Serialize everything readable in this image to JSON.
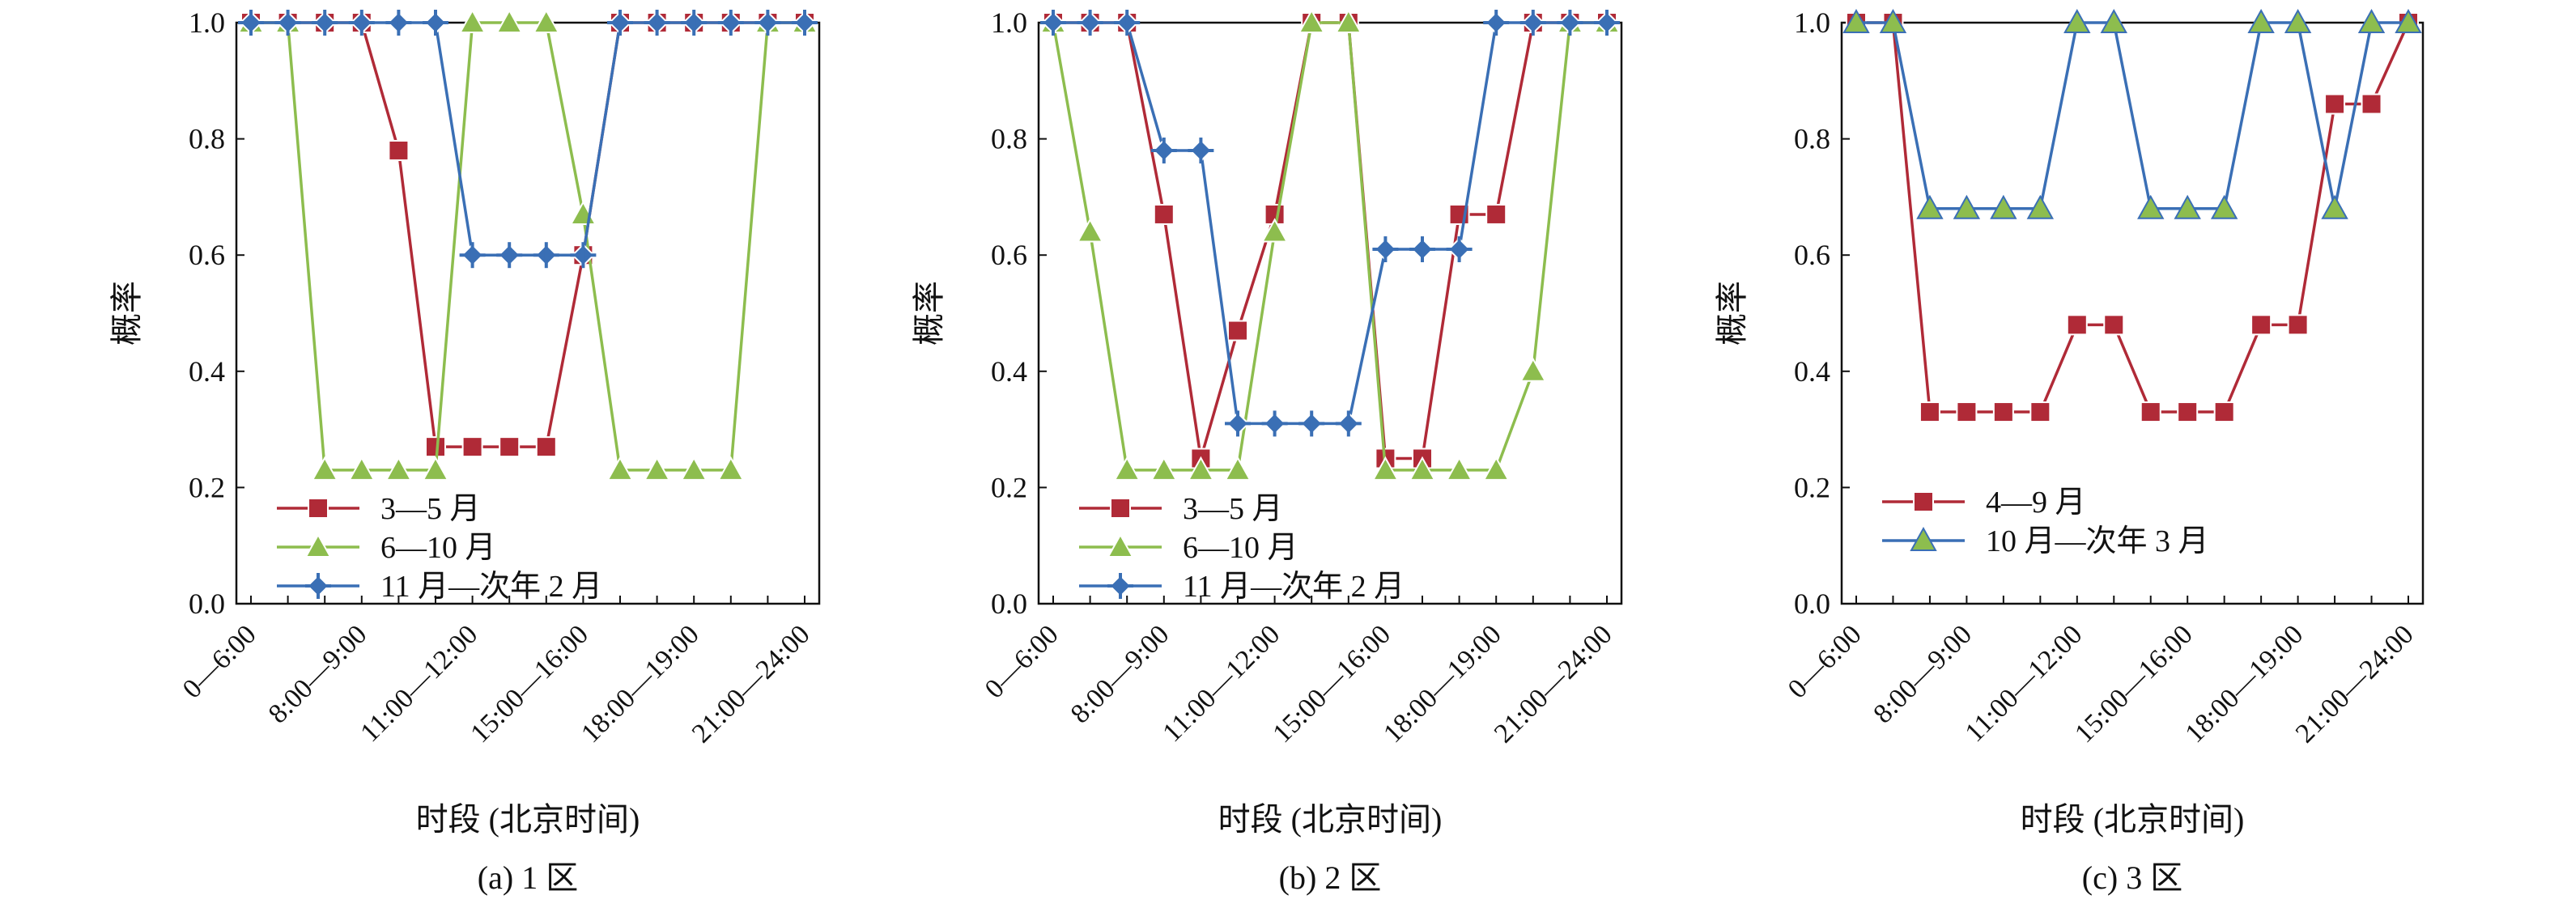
{
  "ylabel": "概率",
  "xlabel": "时段 (北京时间)",
  "ytick_labels": [
    "0.0",
    "0.2",
    "0.4",
    "0.6",
    "0.8",
    "1.0"
  ],
  "xtick_labels": [
    "0—6:00",
    "8:00—9:00",
    "11:00—12:00",
    "15:00—16:00",
    "18:00—19:00",
    "21:00—24:00"
  ],
  "colors": {
    "red": "#b02a37",
    "green": "#8dbd4e",
    "blue": "#3a6fb5"
  },
  "chart_data": [
    {
      "type": "line",
      "caption": "(a) 1 区",
      "xlabel": "时段 (北京时间)",
      "ylabel": "概率",
      "ylim": [
        0,
        1
      ],
      "grid": false,
      "legend_position": "bottom-left",
      "x_count": 16,
      "xtick_labels": [
        "0—6:00",
        "8:00—9:00",
        "11:00—12:00",
        "15:00—16:00",
        "18:00—19:00",
        "21:00—24:00"
      ],
      "series": [
        {
          "name": "3—5 月",
          "marker": "square",
          "color": "#b02a37",
          "values": [
            1,
            1,
            1,
            1,
            0.78,
            0.27,
            0.27,
            0.27,
            0.27,
            0.6,
            1,
            1,
            1,
            1,
            1,
            1
          ]
        },
        {
          "name": "6—10 月",
          "marker": "triangle",
          "color": "#8dbd4e",
          "values": [
            1,
            1,
            0.23,
            0.23,
            0.23,
            0.23,
            1,
            1,
            1,
            0.67,
            0.23,
            0.23,
            0.23,
            0.23,
            1,
            1
          ]
        },
        {
          "name": "11 月—次年 2 月",
          "marker": "diamond",
          "color": "#3a6fb5",
          "values": [
            1,
            1,
            1,
            1,
            1,
            1,
            0.6,
            0.6,
            0.6,
            0.6,
            1,
            1,
            1,
            1,
            1,
            1
          ]
        }
      ]
    },
    {
      "type": "line",
      "caption": "(b) 2 区",
      "xlabel": "时段 (北京时间)",
      "ylabel": "概率",
      "ylim": [
        0,
        1
      ],
      "grid": false,
      "legend_position": "bottom-left",
      "x_count": 16,
      "xtick_labels": [
        "0—6:00",
        "8:00—9:00",
        "11:00—12:00",
        "15:00—16:00",
        "18:00—19:00",
        "21:00—24:00"
      ],
      "series": [
        {
          "name": "3—5 月",
          "marker": "square",
          "color": "#b02a37",
          "values": [
            1,
            1,
            1,
            0.67,
            0.25,
            0.47,
            0.67,
            1,
            1,
            0.25,
            0.25,
            0.67,
            0.67,
            1,
            1,
            1
          ]
        },
        {
          "name": "6—10 月",
          "marker": "triangle",
          "color": "#8dbd4e",
          "values": [
            1,
            0.64,
            0.23,
            0.23,
            0.23,
            0.23,
            0.64,
            1,
            1,
            0.23,
            0.23,
            0.23,
            0.23,
            0.4,
            1,
            1
          ]
        },
        {
          "name": "11 月—次年 2 月",
          "marker": "diamond",
          "color": "#3a6fb5",
          "values": [
            1,
            1,
            1,
            0.78,
            0.78,
            0.31,
            0.31,
            0.31,
            0.31,
            0.61,
            0.61,
            0.61,
            1,
            1,
            1,
            1
          ]
        }
      ]
    },
    {
      "type": "line",
      "caption": "(c) 3 区",
      "xlabel": "时段 (北京时间)",
      "ylabel": "概率",
      "ylim": [
        0,
        1
      ],
      "grid": false,
      "legend_position": "bottom-left",
      "x_count": 16,
      "xtick_labels": [
        "0—6:00",
        "8:00—9:00",
        "11:00—12:00",
        "15:00—16:00",
        "18:00—19:00",
        "21:00—24:00"
      ],
      "series": [
        {
          "name": "4—9 月",
          "marker": "square",
          "color": "#b02a37",
          "values": [
            1,
            1,
            0.33,
            0.33,
            0.33,
            0.33,
            0.48,
            0.48,
            0.33,
            0.33,
            0.33,
            0.48,
            0.48,
            0.86,
            0.86,
            1
          ]
        },
        {
          "name": "10 月—次年 3 月",
          "marker": "triangle",
          "color": "#3a6fb5",
          "fill": "#8dbd4e",
          "values": [
            1,
            1,
            0.68,
            0.68,
            0.68,
            0.68,
            1,
            1,
            0.68,
            0.68,
            0.68,
            1,
            1,
            0.68,
            1,
            1
          ]
        }
      ]
    }
  ]
}
